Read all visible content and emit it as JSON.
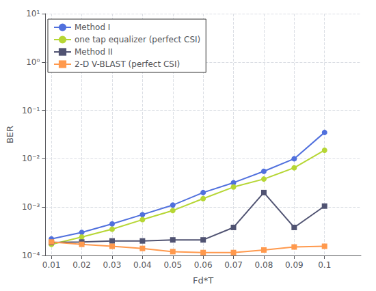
{
  "chart_data": {
    "type": "line",
    "xlabel": "Fd*T",
    "ylabel": "BER",
    "x": [
      0.01,
      0.02,
      0.03,
      0.04,
      0.05,
      0.06,
      0.07,
      0.08,
      0.09,
      0.1
    ],
    "series": [
      {
        "name": "Method I",
        "marker": "circle",
        "values": [
          0.00022,
          0.0003,
          0.00045,
          0.0007,
          0.0011,
          0.002,
          0.0032,
          0.0055,
          0.01,
          0.035
        ]
      },
      {
        "name": "one tap equalizer (perfect CSI)",
        "marker": "circle",
        "values": [
          0.00017,
          0.00024,
          0.00035,
          0.00055,
          0.00085,
          0.0015,
          0.0026,
          0.0038,
          0.0065,
          0.015
        ]
      },
      {
        "name": "Method II",
        "marker": "square",
        "values": [
          0.000185,
          0.00019,
          0.0002,
          0.0002,
          0.00021,
          0.00021,
          0.00038,
          0.002,
          0.00038,
          0.00105
        ]
      },
      {
        "name": "2-D V-BLAST (perfect CSI)",
        "marker": "square",
        "values": [
          0.00019,
          0.00017,
          0.000155,
          0.00014,
          0.00012,
          0.000115,
          0.000115,
          0.00013,
          0.00015,
          0.000155
        ]
      }
    ],
    "xlim": [
      0.008,
      0.112
    ],
    "ylim": [
      0.0001,
      10
    ],
    "xticks": [
      0.01,
      0.02,
      0.03,
      0.04,
      0.05,
      0.06,
      0.07,
      0.08,
      0.09,
      0.1
    ],
    "yticks": [
      {
        "value": 0.0001,
        "label": "10⁻⁴"
      },
      {
        "value": 0.001,
        "label": "10⁻³"
      },
      {
        "value": 0.01,
        "label": "10⁻²"
      },
      {
        "value": 0.1,
        "label": "10⁻¹"
      },
      {
        "value": 1,
        "label": "10⁰"
      },
      {
        "value": 10,
        "label": "10¹"
      }
    ],
    "log": "y",
    "grid": true,
    "legend": "upper left"
  }
}
